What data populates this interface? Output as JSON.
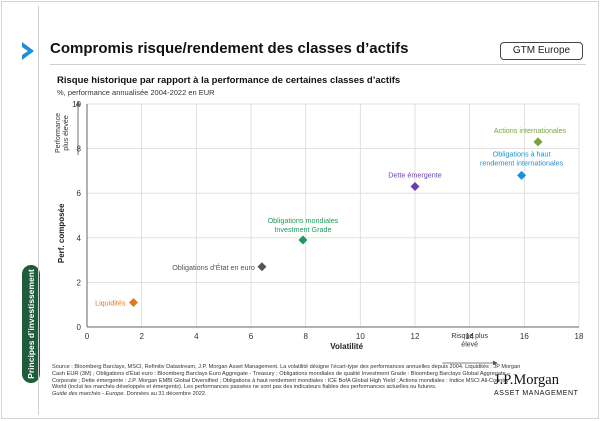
{
  "header": {
    "title": "Compromis risque/rendement des classes d’actifs",
    "badge": "GTM Europe",
    "section_label": "Principes d’investissement"
  },
  "colors": {
    "accent": "#1c8fd6",
    "section_green": "#1f5c3a",
    "grid": "#d9d9d9"
  },
  "chart_data": {
    "type": "scatter",
    "title": "Risque historique par rapport à la performance de certaines classes d’actifs",
    "subtitle": "%, performance annualisée 2004-2022 en EUR",
    "xlabel": "Volatilité",
    "ylabel": "Perf. composée",
    "xlim": [
      0,
      18
    ],
    "ylim": [
      0,
      10
    ],
    "xticks": [
      0,
      2,
      4,
      6,
      8,
      10,
      12,
      14,
      16,
      18
    ],
    "yticks": [
      0,
      2,
      4,
      6,
      8,
      10
    ],
    "grid": true,
    "y_arrow_label": "Performance plus élevée",
    "y_arrow_lines": [
      "Performance",
      "plus élevée"
    ],
    "x_arrow_label": "Risque plus élevé",
    "x_arrow_lines": [
      "Risque plus",
      "élevé"
    ],
    "points": [
      {
        "label": "Liquidités",
        "label_lines": [
          "Liquidités"
        ],
        "x": 1.7,
        "y": 1.1,
        "color": "#e07b1a"
      },
      {
        "label": "Obligations d’État en euro",
        "label_lines": [
          "Obligations d’État en euro"
        ],
        "x": 6.4,
        "y": 2.7,
        "color": "#555555"
      },
      {
        "label": "Obligations mondiales Investment Grade",
        "label_lines": [
          "Obligations mondiales",
          "Investment Grade"
        ],
        "x": 7.9,
        "y": 3.9,
        "color": "#1e9a5a"
      },
      {
        "label": "Dette émergente",
        "label_lines": [
          "Dette émergente"
        ],
        "x": 12.0,
        "y": 6.3,
        "color": "#6a3fb0"
      },
      {
        "label": "Obligations à haut rendement internationales",
        "label_lines": [
          "Obligations à haut",
          "rendement internationales"
        ],
        "x": 15.9,
        "y": 6.8,
        "color": "#1c8fd6"
      },
      {
        "label": "Actions internationales",
        "label_lines": [
          "Actions internationales"
        ],
        "x": 16.5,
        "y": 8.3,
        "color": "#7aa33a"
      }
    ]
  },
  "footer": {
    "source": "Source : Bloomberg Barclays, MSCI, Refinitiv Datastream, J.P. Morgan Asset Management. La volatilité désigne l’écart-type des performances annuelles depuis 2004. Liquidités : JP Morgan Cash EUR (3M) ; Obligations d’État euro : Bloomberg Barclays Euro Aggregate - Treasury ; Obligations mondiales de qualité Investment Grade : Bloomberg Barclays Global Aggregate – Corporate ; Dette émergente : J.P. Morgan EMBI Global Diversified ; Obligations à haut rendement mondiales : ICE BofA Global High Yield ; Actions mondiales : Indice MSCI All-Country World (inclut les marchés développés et émergents). Les performances passées ne sont pas des indicateurs fiables des performances actuelles ou futures.",
    "guide_name": "Guide des marchés - Europe.",
    "date_note": "Données au 31 décembre 2022.",
    "logo_main": "J.P.Morgan",
    "logo_sub": "ASSET MANAGEMENT"
  }
}
